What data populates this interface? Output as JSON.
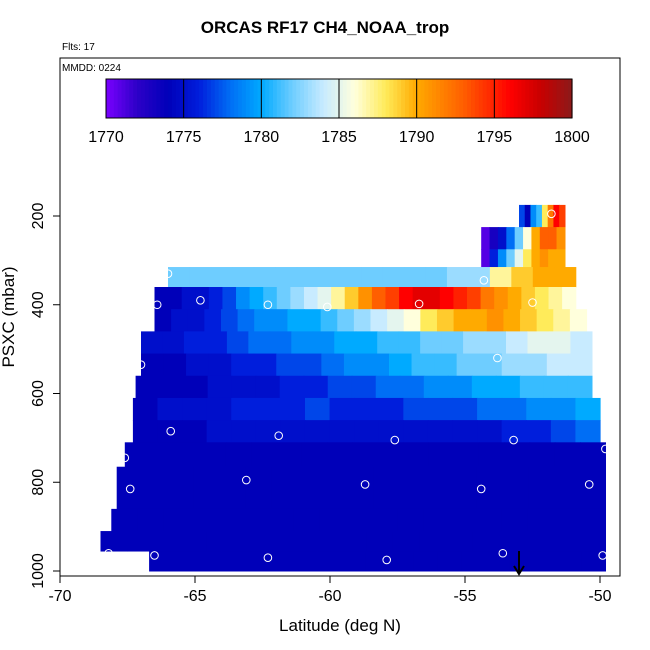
{
  "chart_data": {
    "type": "heatmap",
    "title": "ORCAS RF17 CH4_NOAA_trop",
    "flights_label": "Flts: 17",
    "date_label": "MMDD: 0224",
    "xlabel": "Latitude (deg N)",
    "ylabel": "PSXC (mbar)",
    "xlim": [
      -70,
      -49.5
    ],
    "ylim": [
      1000,
      100
    ],
    "x_ticks": [
      -70,
      -65,
      -60,
      -55,
      -50
    ],
    "y_ticks": [
      200,
      400,
      600,
      800,
      1000
    ],
    "colorbar": {
      "min": 1770,
      "max": 1800,
      "ticks": [
        1770,
        1775,
        1780,
        1785,
        1790,
        1795,
        1800
      ]
    },
    "colors": {
      "low": "#7a00ff",
      "mid_blue": "#0000c8",
      "cyan": "#00aaff",
      "light": "#ffffe0",
      "orange": "#ffa500",
      "red": "#ff0000",
      "dark_red": "#8b1a1a"
    },
    "rows": [
      {
        "p_top": 175,
        "p_bot": 225,
        "lat_start": -53.0,
        "lat_end": -51.3,
        "cells": [
          1777,
          1774,
          1779,
          1781,
          1788,
          1792,
          1796,
          1794
        ]
      },
      {
        "p_top": 225,
        "p_bot": 275,
        "lat_start": -54.4,
        "lat_end": -51.3,
        "cells": [
          1771,
          1773,
          1775,
          1778,
          1782,
          1786,
          1790,
          1793,
          1793,
          1791
        ]
      },
      {
        "p_top": 275,
        "p_bot": 315,
        "lat_start": -54.4,
        "lat_end": -51.3,
        "cells": [
          1771,
          1776,
          1779,
          1782,
          1785,
          1788,
          1790,
          1791,
          1790,
          1790
        ]
      },
      {
        "p_top": 315,
        "p_bot": 360,
        "lat_start": -66.0,
        "lat_end": -50.9,
        "cells": [
          1782,
          1782,
          1782,
          1782,
          1782,
          1782,
          1782,
          1782,
          1782,
          1782,
          1782,
          1782,
          1782,
          1783,
          1783,
          1787,
          1789,
          1790,
          1790
        ]
      },
      {
        "p_top": 360,
        "p_bot": 410,
        "lat_start": -66.5,
        "lat_end": -50.9,
        "cells": [
          1774,
          1774,
          1775,
          1775,
          1776,
          1777,
          1779,
          1780,
          1781,
          1782,
          1783,
          1784,
          1785,
          1787,
          1789,
          1791,
          1793,
          1794,
          1796,
          1797,
          1797,
          1796,
          1795,
          1794,
          1792,
          1791,
          1790,
          1789,
          1788,
          1787,
          1786
        ]
      },
      {
        "p_top": 410,
        "p_bot": 460,
        "lat_start": -66.5,
        "lat_end": -50.5,
        "cells": [
          1774,
          1775,
          1775,
          1776,
          1777,
          1778,
          1779,
          1779,
          1780,
          1780,
          1781,
          1782,
          1783,
          1784,
          1785,
          1786,
          1788,
          1789,
          1790,
          1790,
          1791,
          1790,
          1789,
          1788,
          1787,
          1786
        ]
      },
      {
        "p_top": 460,
        "p_bot": 510,
        "lat_start": -67.0,
        "lat_end": -50.3,
        "cells": [
          1775,
          1775,
          1776,
          1776,
          1777,
          1778,
          1778,
          1779,
          1779,
          1780,
          1780,
          1781,
          1781,
          1782,
          1782,
          1783,
          1783,
          1784,
          1785,
          1785,
          1784
        ]
      },
      {
        "p_top": 510,
        "p_bot": 560,
        "lat_start": -67.0,
        "lat_end": -50.3,
        "cells": [
          1774,
          1774,
          1775,
          1775,
          1776,
          1776,
          1777,
          1777,
          1778,
          1779,
          1779,
          1780,
          1781,
          1781,
          1782,
          1782,
          1783,
          1783,
          1784,
          1784
        ]
      },
      {
        "p_top": 560,
        "p_bot": 610,
        "lat_start": -67.2,
        "lat_end": -50.3,
        "cells": [
          1774,
          1774,
          1774,
          1775,
          1775,
          1775,
          1776,
          1776,
          1777,
          1777,
          1778,
          1778,
          1779,
          1779,
          1780,
          1780,
          1781,
          1781,
          1781
        ]
      },
      {
        "p_top": 610,
        "p_bot": 660,
        "lat_start": -67.3,
        "lat_end": -50.0,
        "cells": [
          1774,
          1775,
          1775,
          1775,
          1776,
          1776,
          1776,
          1777,
          1776,
          1776,
          1776,
          1777,
          1777,
          1777,
          1778,
          1778,
          1779,
          1779,
          1780
        ]
      },
      {
        "p_top": 660,
        "p_bot": 710,
        "lat_start": -67.3,
        "lat_end": -50.0,
        "cells": [
          1774,
          1774,
          1774,
          1775,
          1775,
          1775,
          1775,
          1775,
          1775,
          1775,
          1775,
          1775,
          1775,
          1775,
          1775,
          1776,
          1776,
          1777,
          1778
        ]
      },
      {
        "p_top": 710,
        "p_bot": 765,
        "lat_start": -67.6,
        "lat_end": -49.8,
        "cells": [
          1774,
          1774,
          1774,
          1774,
          1774,
          1774,
          1774,
          1774,
          1774,
          1774,
          1774,
          1774,
          1774,
          1774,
          1774,
          1774,
          1774,
          1774,
          1774
        ]
      },
      {
        "p_top": 765,
        "p_bot": 860,
        "lat_start": -67.9,
        "lat_end": -49.8,
        "cells": [
          1774,
          1774,
          1774,
          1774,
          1774,
          1774,
          1774,
          1774,
          1774,
          1774,
          1774,
          1774,
          1774,
          1774,
          1774,
          1774,
          1774,
          1774,
          1774
        ]
      },
      {
        "p_top": 860,
        "p_bot": 910,
        "lat_start": -68.1,
        "lat_end": -49.8,
        "cells": [
          1774,
          1774,
          1774,
          1774,
          1774,
          1774,
          1774,
          1774,
          1774,
          1774,
          1774,
          1774,
          1774,
          1774,
          1774,
          1774,
          1774,
          1774,
          1774
        ]
      },
      {
        "p_top": 910,
        "p_bot": 955,
        "lat_start": -68.5,
        "lat_end": -49.8,
        "cells": [
          1774,
          1774,
          1774,
          1774,
          1774,
          1774,
          1774,
          1774,
          1774,
          1774,
          1774,
          1774,
          1774,
          1774,
          1774,
          1774,
          1774,
          1774,
          1774
        ]
      },
      {
        "p_top": 955,
        "p_bot": 1000,
        "lat_start": -66.7,
        "lat_end": -49.8,
        "cells": [
          1774,
          1774,
          1774,
          1774,
          1774,
          1774,
          1774,
          1774,
          1774,
          1774,
          1774,
          1774,
          1774,
          1774,
          1774,
          1774,
          1774,
          1774,
          1774
        ]
      }
    ],
    "points": [
      {
        "lat": -51.8,
        "p": 195
      },
      {
        "lat": -54.3,
        "p": 345
      },
      {
        "lat": -66.0,
        "p": 330
      },
      {
        "lat": -66.4,
        "p": 400
      },
      {
        "lat": -64.8,
        "p": 390
      },
      {
        "lat": -62.3,
        "p": 400
      },
      {
        "lat": -60.1,
        "p": 405
      },
      {
        "lat": -56.7,
        "p": 398
      },
      {
        "lat": -52.5,
        "p": 395
      },
      {
        "lat": -53.8,
        "p": 520
      },
      {
        "lat": -67.0,
        "p": 535
      },
      {
        "lat": -65.9,
        "p": 685
      },
      {
        "lat": -61.9,
        "p": 695
      },
      {
        "lat": -57.6,
        "p": 705
      },
      {
        "lat": -53.2,
        "p": 705
      },
      {
        "lat": -49.8,
        "p": 725
      },
      {
        "lat": -67.6,
        "p": 745
      },
      {
        "lat": -63.1,
        "p": 795
      },
      {
        "lat": -58.7,
        "p": 805
      },
      {
        "lat": -54.4,
        "p": 815
      },
      {
        "lat": -50.4,
        "p": 805
      },
      {
        "lat": -67.4,
        "p": 815
      },
      {
        "lat": -68.2,
        "p": 960
      },
      {
        "lat": -66.5,
        "p": 965
      },
      {
        "lat": -62.3,
        "p": 970
      },
      {
        "lat": -57.9,
        "p": 975
      },
      {
        "lat": -53.6,
        "p": 960
      },
      {
        "lat": -49.9,
        "p": 965
      }
    ],
    "arrow": {
      "lat": -53.0,
      "p_from": 955,
      "p_to": 1000
    }
  }
}
